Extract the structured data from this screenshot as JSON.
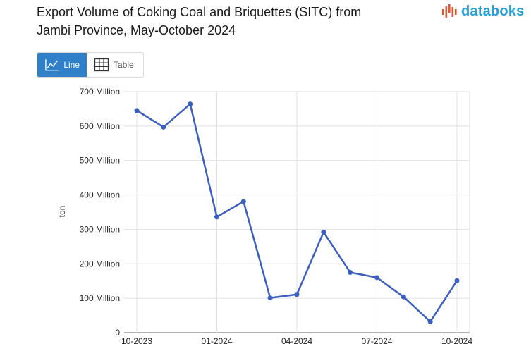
{
  "header": {
    "title_line1": "Export Volume of Coking Coal and Briquettes (SITC) from",
    "title_line2": "Jambi Province, May-October 2024",
    "brand": "databoks"
  },
  "view_toggle": {
    "line_label": "Line",
    "table_label": "Table",
    "active": "line"
  },
  "icons": {
    "brand": "databoks-logo-icon",
    "line": "line-chart-icon",
    "table": "table-grid-icon"
  },
  "colors": {
    "line": "#3b5fc0",
    "active_button": "#2f80c8",
    "brand": "#2a9fd6",
    "brand_bars": "#e4572e"
  },
  "chart_data": {
    "type": "line",
    "ylabel": "ton",
    "ylim": [
      0,
      700000000
    ],
    "yticks": [
      {
        "value": 0,
        "label": "0"
      },
      {
        "value": 100000000,
        "label": "100 Million"
      },
      {
        "value": 200000000,
        "label": "200 Million"
      },
      {
        "value": 300000000,
        "label": "300 Million"
      },
      {
        "value": 400000000,
        "label": "400 Million"
      },
      {
        "value": 500000000,
        "label": "500 Million"
      },
      {
        "value": 600000000,
        "label": "600 Million"
      },
      {
        "value": 700000000,
        "label": "700 Million"
      }
    ],
    "x": [
      "2023-10",
      "2023-11",
      "2023-12",
      "2024-01",
      "2024-02",
      "2024-03",
      "2024-04",
      "2024-05",
      "2024-06",
      "2024-07",
      "2024-08",
      "2024-09",
      "2024-10"
    ],
    "xticks": [
      {
        "at": "2023-10",
        "label": "10-2023"
      },
      {
        "at": "2024-01",
        "label": "01-2024"
      },
      {
        "at": "2024-04",
        "label": "04-2024"
      },
      {
        "at": "2024-07",
        "label": "07-2024"
      },
      {
        "at": "2024-10",
        "label": "10-2024"
      }
    ],
    "series": [
      {
        "values": [
          645000000,
          597000000,
          664000000,
          336000000,
          381000000,
          101000000,
          111000000,
          292000000,
          175000000,
          160000000,
          104000000,
          32000000,
          151000000
        ]
      }
    ],
    "grid": true,
    "legend": "none"
  }
}
